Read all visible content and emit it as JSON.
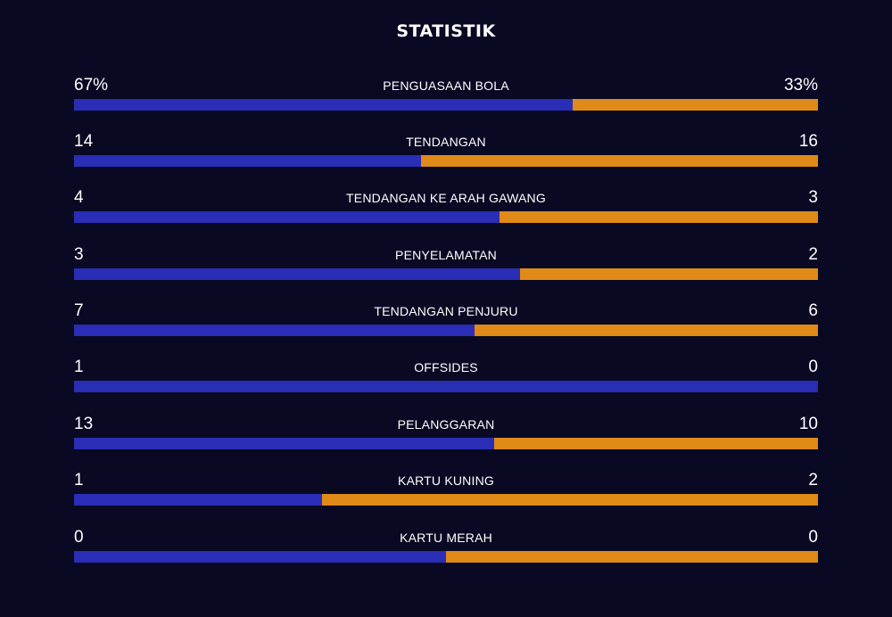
{
  "title": "STATISTIK",
  "colors": {
    "background": "#090923",
    "home": "#2a2db5",
    "away": "#e08a18"
  },
  "stats": [
    {
      "label": "PENGUASAAN BOLA",
      "home": "67%",
      "away": "33%",
      "home_share": 0.67
    },
    {
      "label": "TENDANGAN",
      "home": "14",
      "away": "16",
      "home_share": 0.4667
    },
    {
      "label": "TENDANGAN KE ARAH GAWANG",
      "home": "4",
      "away": "3",
      "home_share": 0.5714
    },
    {
      "label": "PENYELAMATAN",
      "home": "3",
      "away": "2",
      "home_share": 0.6
    },
    {
      "label": "TENDANGAN PENJURU",
      "home": "7",
      "away": "6",
      "home_share": 0.5385
    },
    {
      "label": "OFFSIDES",
      "home": "1",
      "away": "0",
      "home_share": 1.0
    },
    {
      "label": "PELANGGARAN",
      "home": "13",
      "away": "10",
      "home_share": 0.5652
    },
    {
      "label": "KARTU KUNING",
      "home": "1",
      "away": "2",
      "home_share": 0.3333
    },
    {
      "label": "KARTU MERAH",
      "home": "0",
      "away": "0",
      "home_share": 0.5
    }
  ]
}
